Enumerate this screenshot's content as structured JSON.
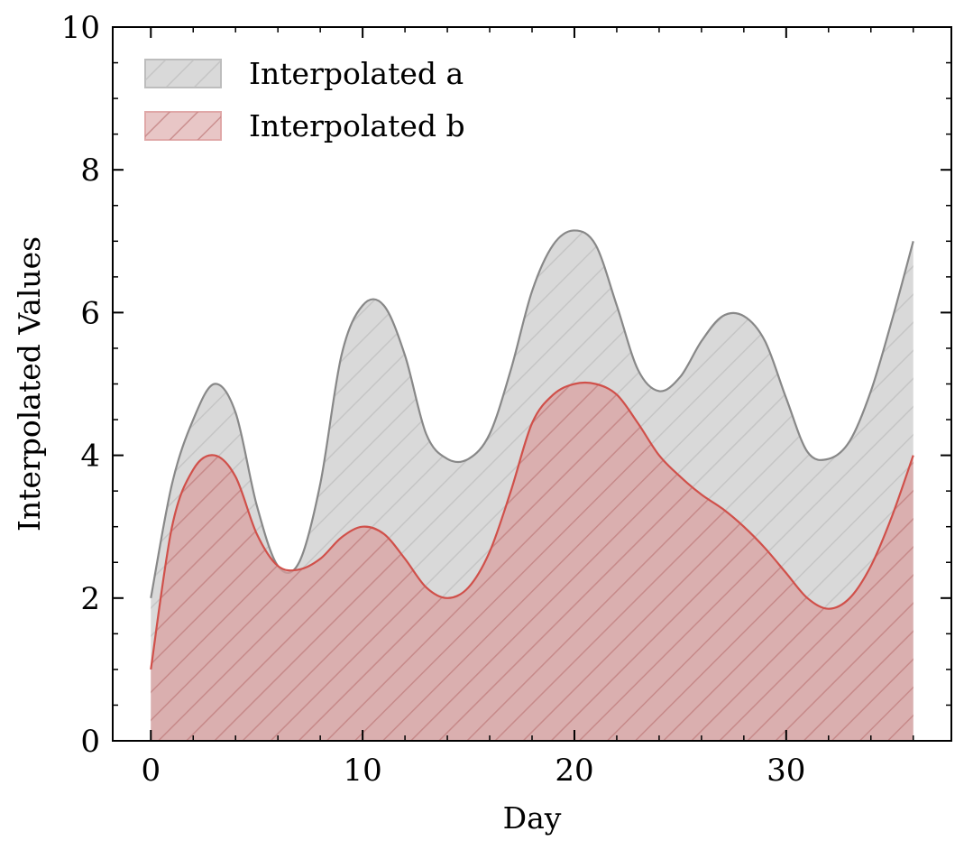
{
  "chart_data": {
    "type": "area",
    "xlabel": "Day",
    "ylabel": "Interpolated Values",
    "xlim": [
      -1.8,
      37.8
    ],
    "ylim": [
      0,
      10
    ],
    "xticks": [
      0,
      10,
      20,
      30
    ],
    "xtick_labels": [
      "0",
      "10",
      "20",
      "30"
    ],
    "yticks": [
      0,
      2,
      4,
      6,
      8,
      10
    ],
    "ytick_labels": [
      "0",
      "2",
      "4",
      "6",
      "8",
      "10"
    ],
    "grid": false,
    "legend_position": "top-left",
    "series": [
      {
        "name": "Interpolated a",
        "fill": "#d9d9d9",
        "line": "#888888",
        "hatch": "#c2c2c2",
        "points": [
          [
            0,
            2.0
          ],
          [
            1,
            3.6
          ],
          [
            2,
            4.5
          ],
          [
            3,
            5.0
          ],
          [
            4,
            4.6
          ],
          [
            5,
            3.3
          ],
          [
            6,
            2.45
          ],
          [
            7,
            2.5
          ],
          [
            8,
            3.6
          ],
          [
            9,
            5.4
          ],
          [
            10,
            6.1
          ],
          [
            11,
            6.1
          ],
          [
            12,
            5.4
          ],
          [
            13,
            4.3
          ],
          [
            14,
            3.95
          ],
          [
            15,
            3.95
          ],
          [
            16,
            4.3
          ],
          [
            17,
            5.2
          ],
          [
            18,
            6.3
          ],
          [
            19,
            6.95
          ],
          [
            20,
            7.15
          ],
          [
            21,
            6.95
          ],
          [
            22,
            6.1
          ],
          [
            23,
            5.2
          ],
          [
            24,
            4.9
          ],
          [
            25,
            5.1
          ],
          [
            26,
            5.6
          ],
          [
            27,
            5.95
          ],
          [
            28,
            5.95
          ],
          [
            29,
            5.6
          ],
          [
            30,
            4.8
          ],
          [
            31,
            4.05
          ],
          [
            32,
            3.95
          ],
          [
            33,
            4.2
          ],
          [
            34,
            4.9
          ],
          [
            35,
            5.9
          ],
          [
            36,
            7.0
          ]
        ]
      },
      {
        "name": "Interpolated b",
        "fill": "#d9a0a0",
        "line": "#d0504a",
        "hatch": "#c48282",
        "points": [
          [
            0,
            1.0
          ],
          [
            1,
            3.0
          ],
          [
            2,
            3.8
          ],
          [
            3,
            4.0
          ],
          [
            4,
            3.7
          ],
          [
            5,
            2.9
          ],
          [
            6,
            2.45
          ],
          [
            7,
            2.4
          ],
          [
            8,
            2.55
          ],
          [
            9,
            2.85
          ],
          [
            10,
            3.0
          ],
          [
            11,
            2.9
          ],
          [
            12,
            2.55
          ],
          [
            13,
            2.15
          ],
          [
            14,
            2.0
          ],
          [
            15,
            2.15
          ],
          [
            16,
            2.65
          ],
          [
            17,
            3.5
          ],
          [
            18,
            4.45
          ],
          [
            19,
            4.85
          ],
          [
            20,
            5.0
          ],
          [
            21,
            5.0
          ],
          [
            22,
            4.85
          ],
          [
            23,
            4.45
          ],
          [
            24,
            4.0
          ],
          [
            25,
            3.7
          ],
          [
            26,
            3.45
          ],
          [
            27,
            3.25
          ],
          [
            28,
            3.0
          ],
          [
            29,
            2.7
          ],
          [
            30,
            2.35
          ],
          [
            31,
            2.0
          ],
          [
            32,
            1.85
          ],
          [
            33,
            2.0
          ],
          [
            34,
            2.45
          ],
          [
            35,
            3.15
          ],
          [
            36,
            4.0
          ]
        ]
      }
    ]
  }
}
